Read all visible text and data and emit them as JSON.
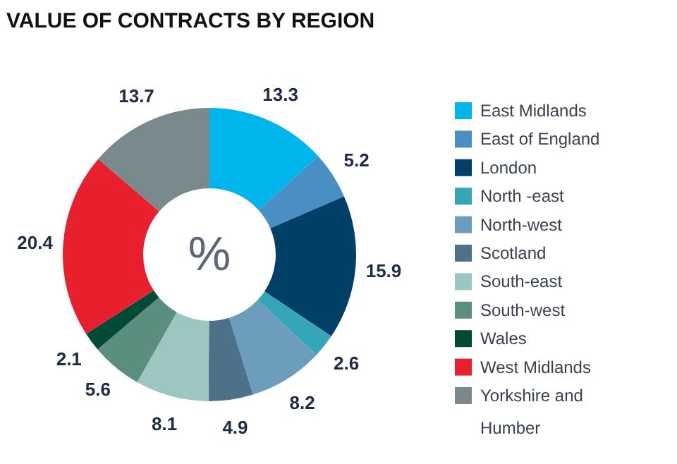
{
  "chart_data": {
    "type": "donut",
    "title": "VALUE OF CONTRACTS BY REGION",
    "categories": [
      "East Midlands",
      "East of England",
      "London",
      "North -east",
      "North-west",
      "Scotland",
      "South-east",
      "South-west",
      "Wales",
      "West Midlands",
      "Yorkshire and Humber"
    ],
    "values": [
      13.3,
      5.2,
      15.9,
      2.6,
      8.2,
      4.9,
      8.1,
      5.6,
      2.1,
      20.4,
      13.7
    ],
    "colors": [
      "#00b5ec",
      "#4a8fc4",
      "#003f66",
      "#34a6b8",
      "#6d9dbd",
      "#4d7189",
      "#9dc6c0",
      "#5a8f80",
      "#004a36",
      "#e8202e",
      "#7a898b"
    ],
    "data_labels": true,
    "legend": "right",
    "annotations": [
      "%"
    ]
  }
}
